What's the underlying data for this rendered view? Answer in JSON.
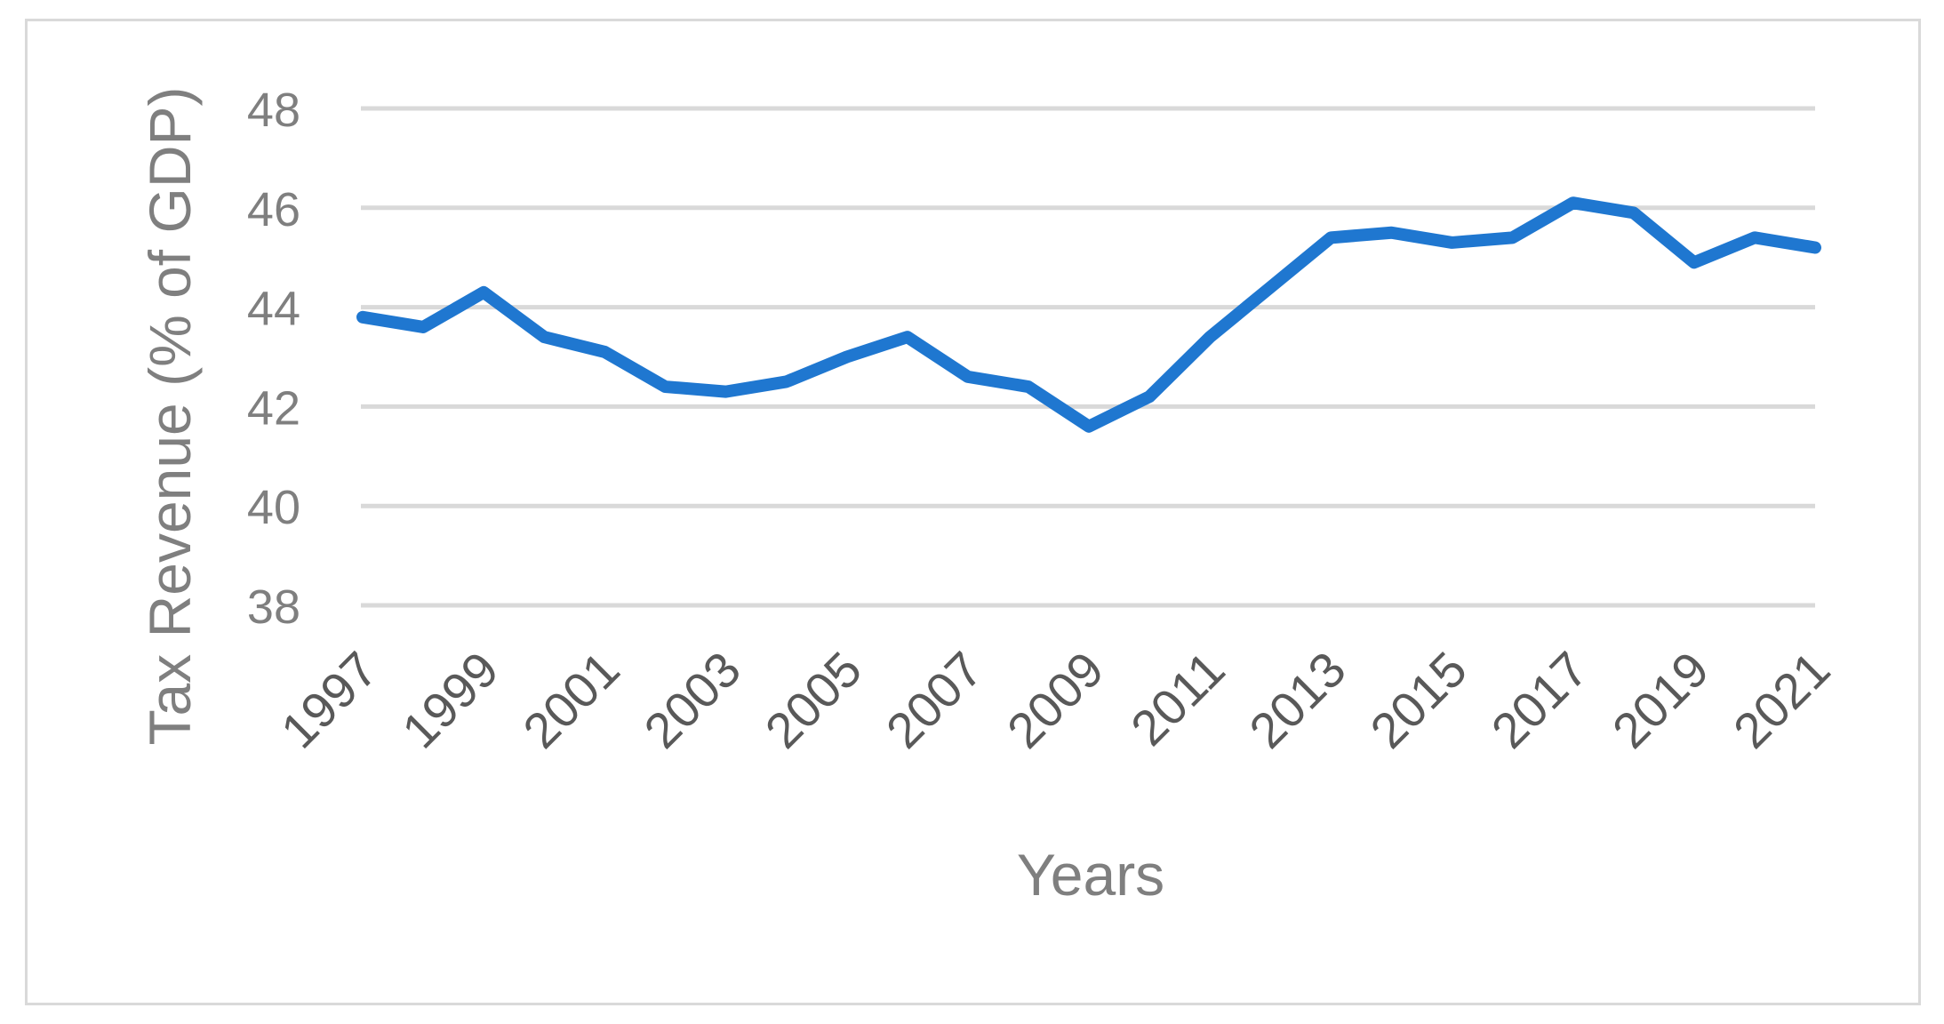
{
  "chart_data": {
    "type": "line",
    "title": "",
    "xlabel": "Years",
    "ylabel": "Tax Revenue (% of GDP)",
    "x": [
      1997,
      1998,
      1999,
      2000,
      2001,
      2002,
      2003,
      2004,
      2005,
      2006,
      2007,
      2008,
      2009,
      2010,
      2011,
      2012,
      2013,
      2014,
      2015,
      2016,
      2017,
      2018,
      2019,
      2020,
      2021
    ],
    "x_tick_labels": [
      "1997",
      "1999",
      "2001",
      "2003",
      "2005",
      "2007",
      "2009",
      "2011",
      "2013",
      "2015",
      "2017",
      "2019",
      "2021"
    ],
    "y_tick_labels": [
      "38",
      "40",
      "42",
      "44",
      "46",
      "48"
    ],
    "ylim": [
      38,
      48
    ],
    "grid": true,
    "legend": "none",
    "series": [
      {
        "values": [
          43.8,
          43.6,
          44.3,
          43.4,
          43.1,
          42.4,
          42.3,
          42.5,
          43.0,
          43.4,
          42.6,
          42.4,
          41.6,
          42.2,
          43.4,
          44.4,
          45.4,
          45.5,
          45.3,
          45.4,
          46.1,
          45.9,
          44.9,
          45.4,
          45.2
        ],
        "color": "#1f77d0"
      }
    ]
  },
  "colors": {
    "line": "#1f77d0",
    "grid": "#d9d9d9",
    "axis_text": "#7f7f7f",
    "tick_text": "#595959",
    "frame": "#d9d9d9"
  }
}
